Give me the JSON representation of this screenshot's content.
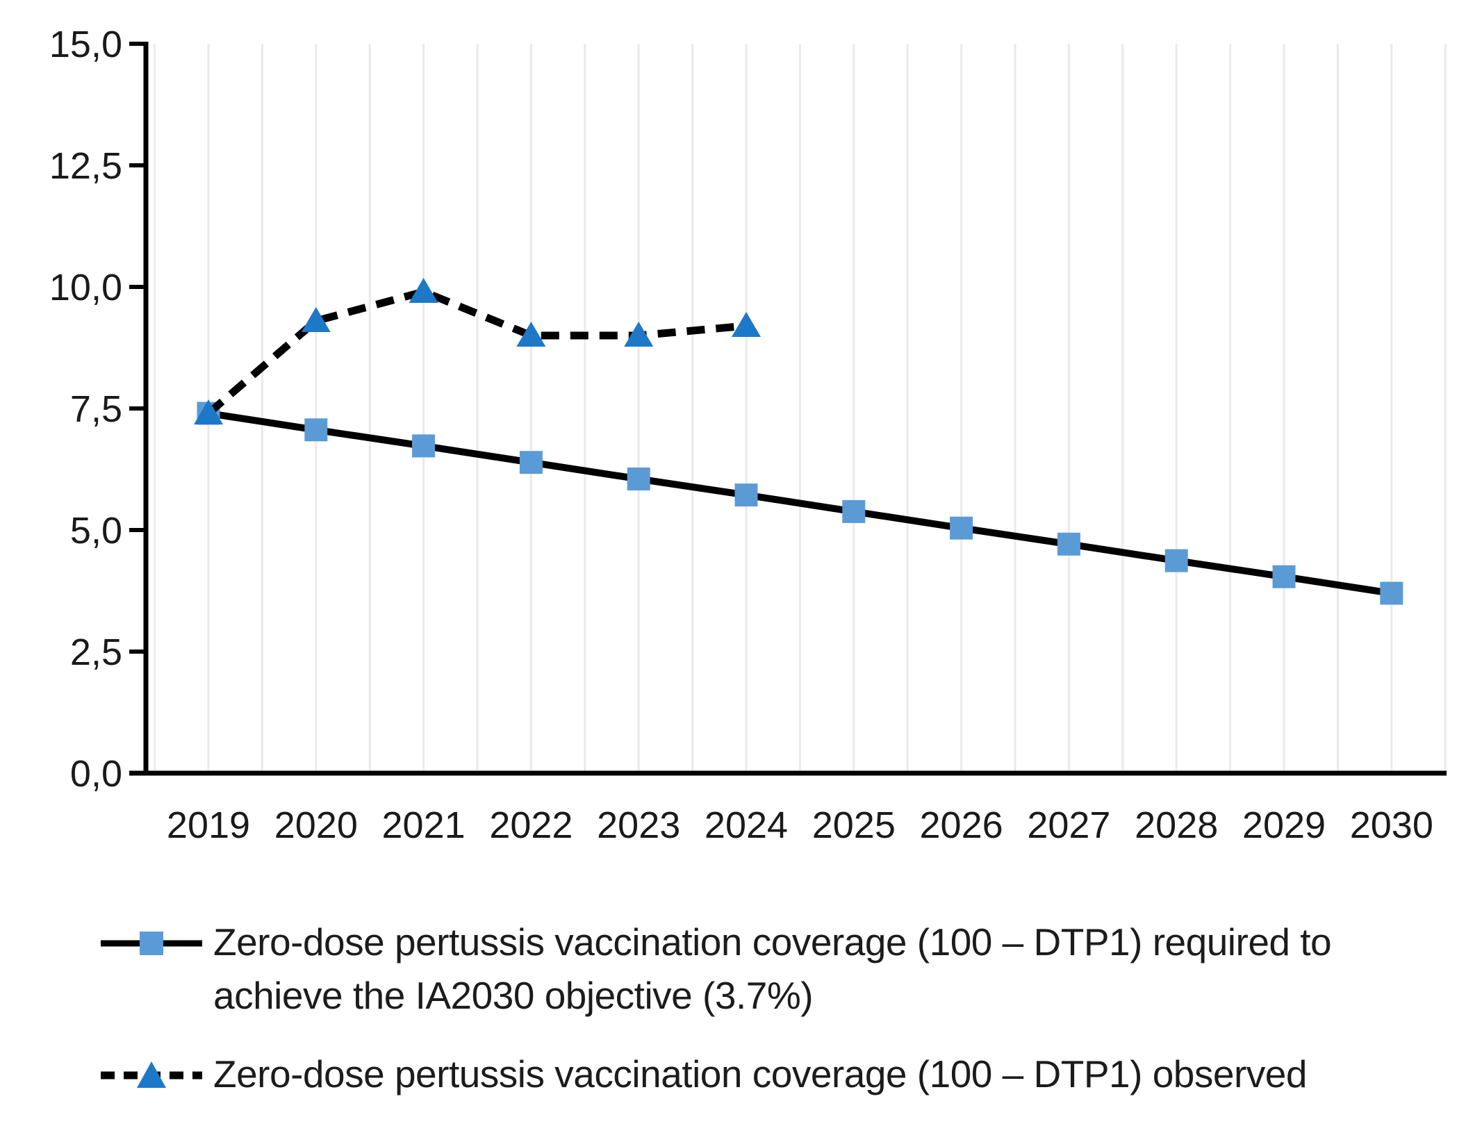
{
  "chart_data": {
    "type": "line",
    "title": "",
    "categories": [
      "2019",
      "2020",
      "2021",
      "2022",
      "2023",
      "2024",
      "2025",
      "2026",
      "2027",
      "2028",
      "2029",
      "2030"
    ],
    "ylim": [
      0,
      15
    ],
    "yticks": [
      0,
      2.5,
      5,
      7.5,
      10,
      12.5,
      15
    ],
    "ytick_labels": [
      "0,0",
      "2,5",
      "5,0",
      "7,5",
      "10,0",
      "12,5",
      "15,0"
    ],
    "decimal_style": "comma",
    "grid": "light vertical gridlines at half-category spacing",
    "legend_position": "bottom-left",
    "axis_color": "#000000",
    "gridline_color": "#EAEAEA",
    "text_color": "#1A1A1A",
    "series": [
      {
        "name": "required",
        "label": "Zero-dose pertussis vaccination coverage (100 – DTP1) required to achieve the IA2030 objective (3.7%)",
        "line_style": "solid",
        "line_color": "#000000",
        "marker": "square",
        "marker_color": "#5B9BD5",
        "values": [
          7.4,
          7.06,
          6.73,
          6.39,
          6.05,
          5.72,
          5.38,
          5.04,
          4.71,
          4.37,
          4.04,
          3.7
        ]
      },
      {
        "name": "observed",
        "label": "Zero-dose pertussis vaccination coverage (100 – DTP1) observed",
        "line_style": "dashed",
        "line_color": "#000000",
        "marker": "triangle",
        "marker_color": "#1E78C8",
        "values": [
          7.4,
          9.3,
          9.9,
          9.0,
          9.0,
          9.2,
          null,
          null,
          null,
          null,
          null,
          null
        ]
      }
    ]
  }
}
